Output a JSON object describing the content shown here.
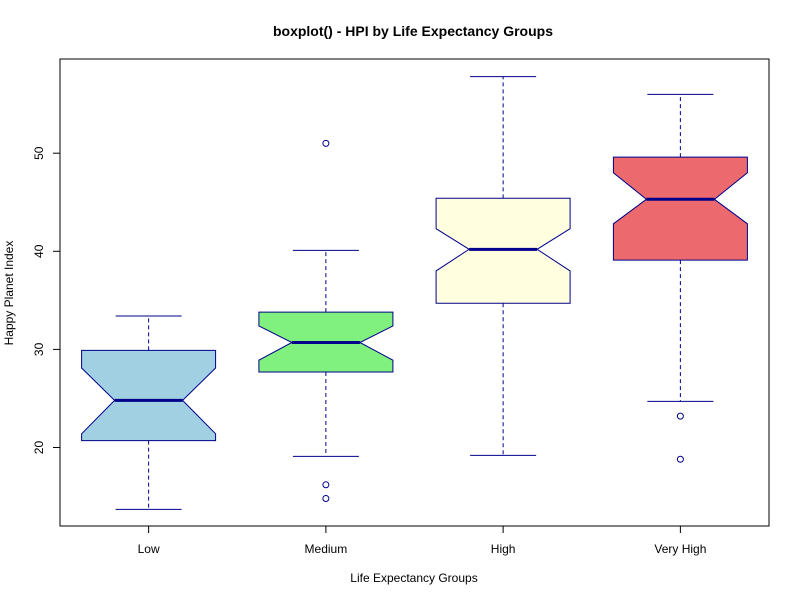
{
  "chart_data": {
    "type": "boxplot",
    "title": "boxplot() - HPI by Life Expectancy Groups",
    "xlabel": "Life Expectancy Groups",
    "ylabel": "Happy Planet Index",
    "ylim": [
      12,
      59.6
    ],
    "yticks": [
      20,
      30,
      40,
      50
    ],
    "notched": true,
    "grid": false,
    "border_color": "#00008b",
    "median_color": "#00008b",
    "groups": [
      {
        "label": "Low",
        "color": "#a0d0e1",
        "whisker_low": 13.7,
        "q1": 20.7,
        "median": 24.8,
        "q3": 29.9,
        "whisker_high": 33.4,
        "notch_low": 21.4,
        "notch_high": 28.1,
        "outliers": []
      },
      {
        "label": "Medium",
        "color": "#80f07e",
        "whisker_low": 19.1,
        "q1": 27.7,
        "median": 30.7,
        "q3": 33.8,
        "whisker_high": 40.1,
        "notch_low": 28.9,
        "notch_high": 32.4,
        "outliers": [
          51.0,
          16.2,
          14.8
        ]
      },
      {
        "label": "High",
        "color": "#ffffe0",
        "whisker_low": 19.2,
        "q1": 34.7,
        "median": 40.2,
        "q3": 45.4,
        "whisker_high": 57.8,
        "notch_low": 38.0,
        "notch_high": 42.3,
        "outliers": []
      },
      {
        "label": "Very High",
        "color": "#ec6a6e",
        "whisker_low": 24.7,
        "q1": 39.1,
        "median": 45.3,
        "q3": 49.6,
        "whisker_high": 56.0,
        "notch_low": 42.8,
        "notch_high": 48.0,
        "outliers": [
          23.2,
          18.8
        ]
      }
    ]
  }
}
